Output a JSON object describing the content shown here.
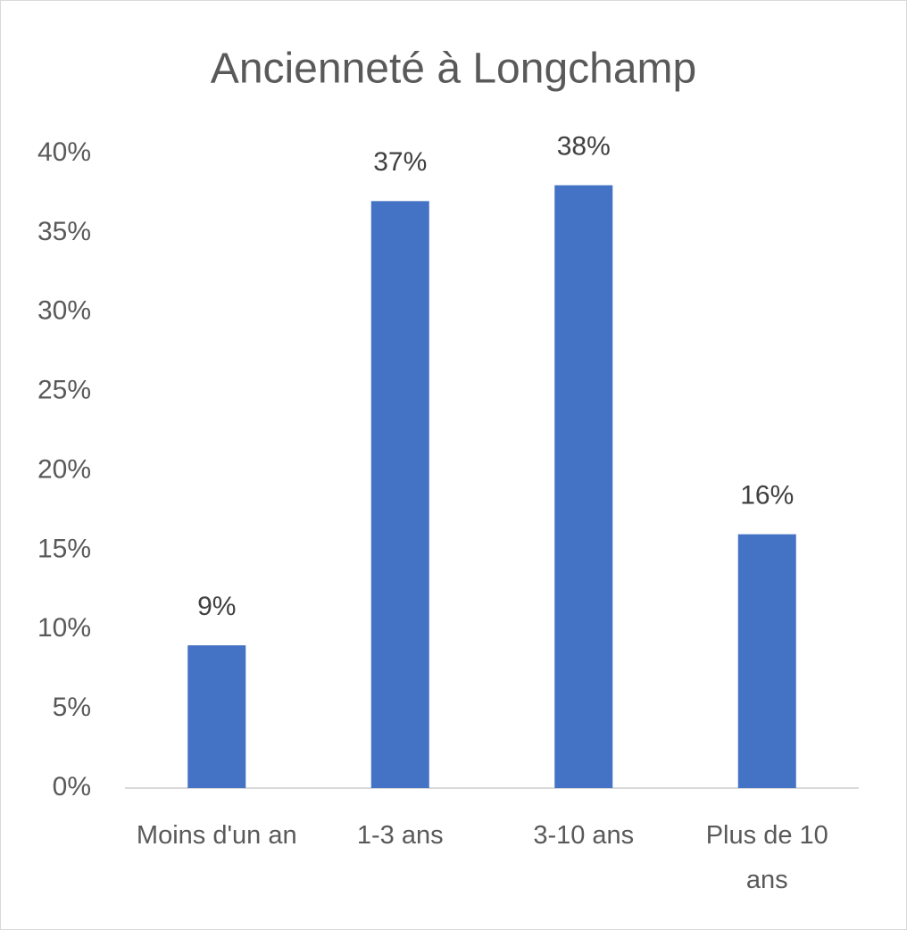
{
  "chart_data": {
    "type": "bar",
    "title": "Ancienneté à Longchamp",
    "categories": [
      "Moins d'un an",
      "1-3 ans",
      "3-10 ans",
      "Plus de 10 ans"
    ],
    "values": [
      9,
      37,
      38,
      16
    ],
    "value_labels": [
      "9%",
      "37%",
      "38%",
      "16%"
    ],
    "color": "#4472c4",
    "ylim": [
      0,
      40
    ],
    "yticks": [
      {
        "value": 0,
        "label": "0%"
      },
      {
        "value": 5,
        "label": "5%"
      },
      {
        "value": 10,
        "label": "10%"
      },
      {
        "value": 15,
        "label": "15%"
      },
      {
        "value": 20,
        "label": "20%"
      },
      {
        "value": 25,
        "label": "25%"
      },
      {
        "value": 30,
        "label": "30%"
      },
      {
        "value": 35,
        "label": "35%"
      },
      {
        "value": 40,
        "label": "40%"
      }
    ],
    "grid": false
  }
}
